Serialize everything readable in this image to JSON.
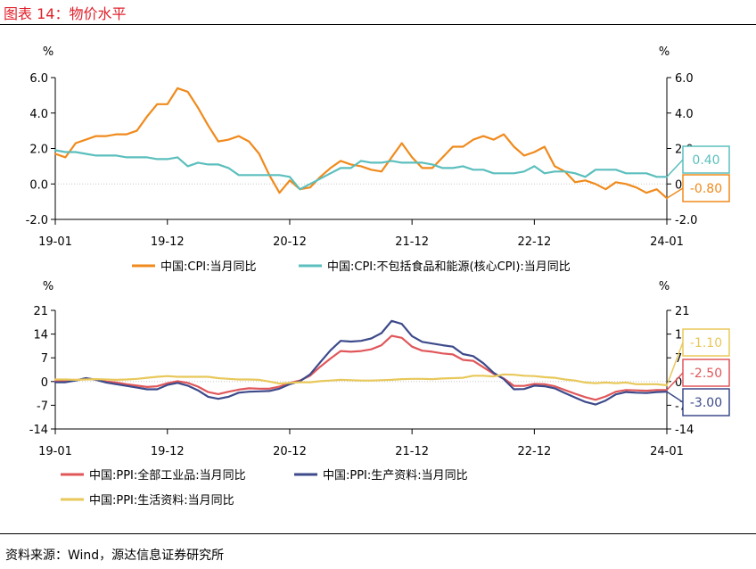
{
  "title": "图表 14：物价水平",
  "source": "资料来源：Wind，源达信息证券研究所",
  "colors": {
    "title_red": "#e0202a",
    "cpi": "#f08a1c",
    "core_cpi": "#5bbfbd",
    "ppi_all": "#e0575a",
    "ppi_production": "#3d4a8a",
    "ppi_living": "#e8c85a"
  },
  "chart_data": [
    {
      "type": "line",
      "unit_left": "%",
      "unit_right": "%",
      "ylim": [
        -2.0,
        6.0
      ],
      "yticks": [
        "6.0",
        "4.0",
        "2.0",
        "0.0",
        "-2.0"
      ],
      "yticks_right": [
        "6.0",
        "4.0",
        "2.0",
        "0.0",
        "-2.0"
      ],
      "xticks": [
        "19-01",
        "19-12",
        "20-12",
        "21-12",
        "22-12",
        "24-01"
      ],
      "series": [
        {
          "name": "中国:CPI:当月同比",
          "color": "#f08a1c",
          "end_label": "-0.80",
          "values": [
            1.7,
            1.5,
            2.3,
            2.5,
            2.7,
            2.7,
            2.8,
            2.8,
            3.0,
            3.8,
            4.5,
            4.5,
            5.4,
            5.2,
            4.3,
            3.3,
            2.4,
            2.5,
            2.7,
            2.4,
            1.7,
            0.5,
            -0.5,
            0.2,
            -0.3,
            -0.2,
            0.4,
            0.9,
            1.3,
            1.1,
            1.0,
            0.8,
            0.7,
            1.5,
            2.3,
            1.5,
            0.9,
            0.9,
            1.5,
            2.1,
            2.1,
            2.5,
            2.7,
            2.5,
            2.8,
            2.1,
            1.6,
            1.8,
            2.1,
            1.0,
            0.7,
            0.1,
            0.2,
            0.0,
            -0.3,
            0.1,
            0.0,
            -0.2,
            -0.5,
            -0.3,
            -0.8
          ]
        },
        {
          "name": "中国:CPI:不包括食品和能源(核心CPI):当月同比",
          "color": "#5bbfbd",
          "end_label": "0.40",
          "values": [
            1.9,
            1.8,
            1.8,
            1.7,
            1.6,
            1.6,
            1.6,
            1.5,
            1.5,
            1.5,
            1.4,
            1.4,
            1.5,
            1.0,
            1.2,
            1.1,
            1.1,
            0.9,
            0.5,
            0.5,
            0.5,
            0.5,
            0.5,
            0.4,
            -0.3,
            0.0,
            0.3,
            0.6,
            0.9,
            0.9,
            1.3,
            1.2,
            1.2,
            1.3,
            1.2,
            1.2,
            1.2,
            1.1,
            0.9,
            0.9,
            1.0,
            0.8,
            0.8,
            0.6,
            0.6,
            0.6,
            0.7,
            1.0,
            0.6,
            0.7,
            0.7,
            0.6,
            0.4,
            0.8,
            0.8,
            0.8,
            0.6,
            0.6,
            0.6,
            0.4,
            0.4
          ]
        }
      ],
      "legend_position": "bottom"
    },
    {
      "type": "line",
      "unit_left": "%",
      "unit_right": "%",
      "ylim": [
        -14,
        21
      ],
      "yticks": [
        "21",
        "14",
        "7",
        "0",
        "-7",
        "-14"
      ],
      "yticks_right": [
        "21",
        "14",
        "7",
        "0",
        "-7",
        "-14"
      ],
      "xticks": [
        "19-01",
        "19-12",
        "20-12",
        "21-12",
        "22-12",
        "24-01"
      ],
      "series": [
        {
          "name": "中国:PPI:全部工业品:当月同比",
          "color": "#e0575a",
          "end_label": "-2.50",
          "values": [
            0.1,
            0.1,
            0.4,
            0.9,
            0.6,
            0.0,
            -0.3,
            -0.8,
            -1.2,
            -1.6,
            -1.4,
            -0.5,
            0.1,
            -0.4,
            -1.5,
            -3.1,
            -3.7,
            -3.0,
            -2.4,
            -2.0,
            -2.1,
            -2.1,
            -1.5,
            -0.4,
            0.3,
            1.7,
            4.4,
            6.8,
            9.0,
            8.8,
            9.0,
            9.5,
            10.7,
            13.5,
            12.9,
            10.3,
            9.1,
            8.8,
            8.3,
            8.0,
            6.4,
            6.1,
            4.2,
            2.3,
            0.9,
            -1.3,
            -1.3,
            -0.7,
            -0.8,
            -1.4,
            -2.5,
            -3.6,
            -4.6,
            -5.4,
            -4.4,
            -3.0,
            -2.5,
            -2.6,
            -2.7,
            -2.5,
            -2.5
          ]
        },
        {
          "name": "中国:PPI:生产资料:当月同比",
          "color": "#3d4a8a",
          "end_label": "-3.00",
          "values": [
            -0.2,
            -0.2,
            0.3,
            1.0,
            0.5,
            -0.3,
            -0.8,
            -1.3,
            -1.8,
            -2.3,
            -2.3,
            -1.0,
            -0.4,
            -1.2,
            -2.6,
            -4.5,
            -5.1,
            -4.5,
            -3.3,
            -3.0,
            -2.9,
            -2.8,
            -2.1,
            -0.8,
            0.1,
            2.1,
            5.7,
            9.2,
            12.0,
            11.8,
            12.0,
            12.7,
            14.3,
            17.9,
            17.0,
            13.4,
            11.7,
            11.2,
            10.7,
            10.3,
            8.1,
            7.5,
            5.4,
            2.6,
            0.7,
            -2.3,
            -2.2,
            -1.2,
            -1.4,
            -2.0,
            -3.4,
            -4.7,
            -6.0,
            -6.8,
            -5.6,
            -3.8,
            -3.1,
            -3.3,
            -3.4,
            -3.1,
            -3.0
          ]
        },
        {
          "name": "中国:PPI:生活资料:当月同比",
          "color": "#e8c85a",
          "end_label": "-1.10",
          "values": [
            0.6,
            0.6,
            0.5,
            0.6,
            0.7,
            0.6,
            0.5,
            0.6,
            0.8,
            1.1,
            1.4,
            1.6,
            1.4,
            1.4,
            1.4,
            1.4,
            1.0,
            0.8,
            0.6,
            0.6,
            0.5,
            0.0,
            -0.6,
            -0.4,
            -0.2,
            -0.2,
            0.1,
            0.3,
            0.5,
            0.4,
            0.3,
            0.3,
            0.4,
            0.5,
            0.7,
            0.8,
            0.8,
            0.7,
            0.9,
            1.0,
            1.1,
            1.7,
            1.7,
            1.5,
            2.1,
            2.0,
            1.7,
            1.6,
            1.3,
            1.1,
            0.6,
            0.3,
            -0.3,
            -0.5,
            -0.3,
            -0.5,
            -0.3,
            -0.8,
            -0.8,
            -0.8,
            -1.1
          ]
        }
      ],
      "legend_position": "bottom"
    }
  ]
}
